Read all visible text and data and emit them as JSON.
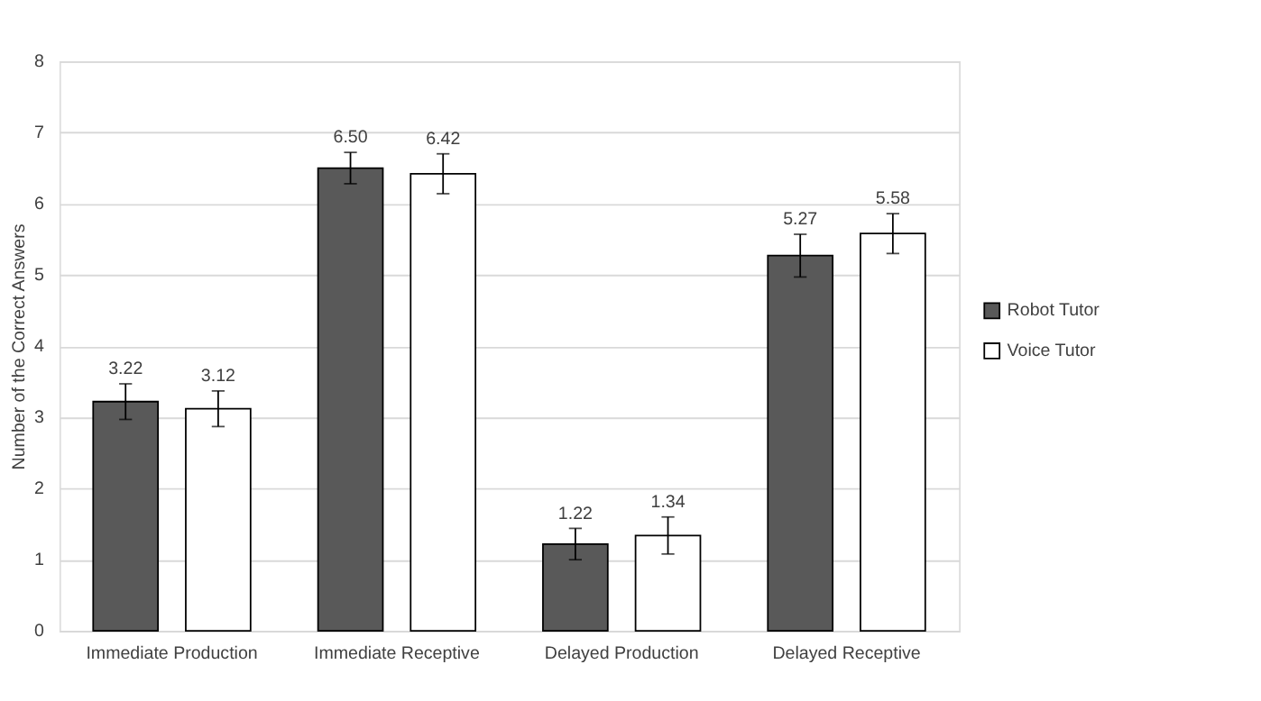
{
  "chart_data": {
    "type": "bar",
    "ylabel": "Number of the Correct Answers",
    "categories": [
      "Immediate Production",
      "Immediate Receptive",
      "Delayed Production",
      "Delayed Receptive"
    ],
    "series": [
      {
        "name": "Robot Tutor",
        "color": "#595959",
        "values": [
          3.22,
          6.5,
          1.22,
          5.27
        ],
        "value_labels": [
          "3.22",
          "6.50",
          "1.22",
          "5.27"
        ],
        "errors": [
          0.25,
          0.22,
          0.22,
          0.3
        ]
      },
      {
        "name": "Voice Tutor",
        "color": "#ffffff",
        "values": [
          3.12,
          6.42,
          1.34,
          5.58
        ],
        "value_labels": [
          "3.12",
          "6.42",
          "1.34",
          "5.58"
        ],
        "errors": [
          0.25,
          0.28,
          0.26,
          0.28
        ]
      }
    ],
    "ylim": [
      0,
      8
    ],
    "yticks": [
      0,
      1,
      2,
      3,
      4,
      5,
      6,
      7,
      8
    ],
    "grid": "y",
    "legend": "right"
  }
}
